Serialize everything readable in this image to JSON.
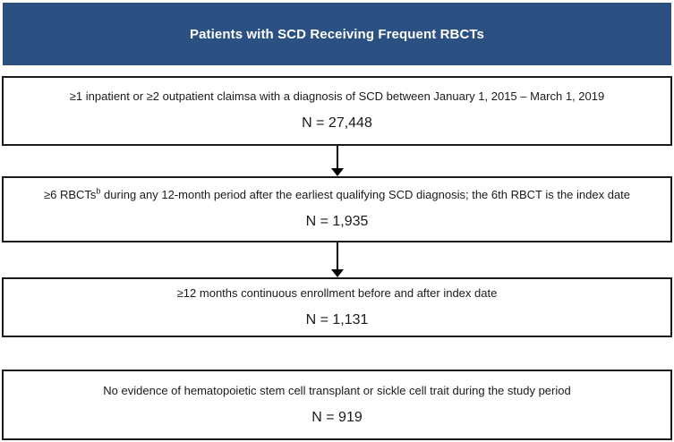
{
  "header": {
    "title": "Patients with SCD Receiving Frequent RBCTs"
  },
  "colors": {
    "header_bg": "#2b5082",
    "header_text": "#ffffff",
    "box_border": "#1a1a1a",
    "arrow": "#000000",
    "background": "#ffffff"
  },
  "flow": {
    "boxes": [
      {
        "text": "≥1 inpatient or ≥2 outpatient claimsa with a diagnosis of SCD between January 1, 2015 – March 1, 2019",
        "sup": "",
        "text_after": "",
        "n_label": "N = 27,448"
      },
      {
        "text": "≥6 RBCTs",
        "sup": "b",
        "text_after": " during any 12-month period after the earliest qualifying SCD diagnosis; the 6th RBCT is the index date",
        "n_label": "N = 1,935"
      },
      {
        "text": "≥12 months continuous enrollment before and after index date",
        "sup": "",
        "text_after": "",
        "n_label": "N = 1,131"
      },
      {
        "text": "No evidence of hematopoietic stem cell transplant or sickle cell trait during the study period",
        "sup": "",
        "text_after": "",
        "n_label": "N = 919"
      }
    ]
  }
}
